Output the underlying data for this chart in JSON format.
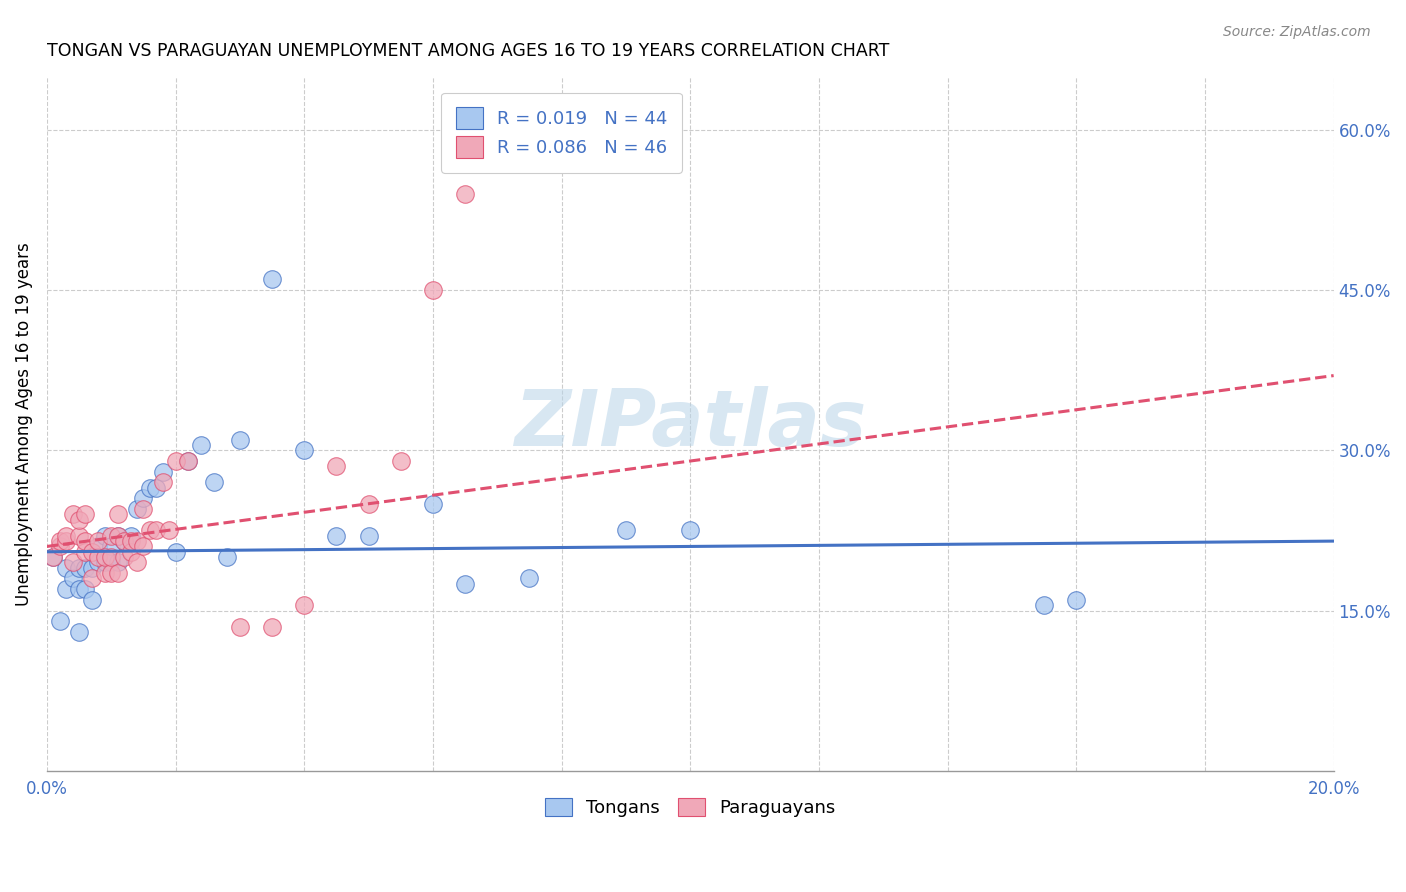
{
  "title": "TONGAN VS PARAGUAYAN UNEMPLOYMENT AMONG AGES 16 TO 19 YEARS CORRELATION CHART",
  "source": "Source: ZipAtlas.com",
  "ylabel": "Unemployment Among Ages 16 to 19 years",
  "xlim": [
    0.0,
    0.2
  ],
  "ylim": [
    0.0,
    0.65
  ],
  "xticks": [
    0.0,
    0.02,
    0.04,
    0.06,
    0.08,
    0.1,
    0.12,
    0.14,
    0.16,
    0.18,
    0.2
  ],
  "yticks_right": [
    0.15,
    0.3,
    0.45,
    0.6
  ],
  "ytick_labels_right": [
    "15.0%",
    "30.0%",
    "45.0%",
    "60.0%"
  ],
  "color_tongan": "#a8c8f0",
  "color_paraguayan": "#f0a8b8",
  "color_blue": "#4472c4",
  "color_pink": "#e05070",
  "legend_R_tongan": "R = 0.019",
  "legend_N_tongan": "N = 44",
  "legend_R_paraguayan": "R = 0.086",
  "legend_N_paraguayan": "N = 46",
  "watermark": "ZIPatlas",
  "tongan_x": [
    0.001,
    0.002,
    0.003,
    0.003,
    0.004,
    0.005,
    0.005,
    0.005,
    0.006,
    0.006,
    0.007,
    0.007,
    0.008,
    0.008,
    0.009,
    0.009,
    0.01,
    0.01,
    0.011,
    0.011,
    0.012,
    0.013,
    0.014,
    0.015,
    0.016,
    0.017,
    0.018,
    0.02,
    0.022,
    0.024,
    0.026,
    0.028,
    0.03,
    0.035,
    0.04,
    0.045,
    0.05,
    0.06,
    0.065,
    0.075,
    0.09,
    0.1,
    0.155,
    0.16
  ],
  "tongan_y": [
    0.2,
    0.14,
    0.17,
    0.19,
    0.18,
    0.13,
    0.17,
    0.19,
    0.17,
    0.19,
    0.16,
    0.19,
    0.195,
    0.21,
    0.195,
    0.22,
    0.195,
    0.21,
    0.195,
    0.22,
    0.215,
    0.22,
    0.245,
    0.255,
    0.265,
    0.265,
    0.28,
    0.205,
    0.29,
    0.305,
    0.27,
    0.2,
    0.31,
    0.46,
    0.3,
    0.22,
    0.22,
    0.25,
    0.175,
    0.18,
    0.225,
    0.225,
    0.155,
    0.16
  ],
  "paraguayan_x": [
    0.001,
    0.002,
    0.002,
    0.003,
    0.003,
    0.004,
    0.004,
    0.005,
    0.005,
    0.006,
    0.006,
    0.006,
    0.007,
    0.007,
    0.008,
    0.008,
    0.009,
    0.009,
    0.01,
    0.01,
    0.01,
    0.011,
    0.011,
    0.011,
    0.012,
    0.012,
    0.013,
    0.013,
    0.014,
    0.014,
    0.015,
    0.015,
    0.016,
    0.017,
    0.018,
    0.019,
    0.02,
    0.022,
    0.03,
    0.035,
    0.04,
    0.045,
    0.05,
    0.055,
    0.06,
    0.065
  ],
  "paraguayan_y": [
    0.2,
    0.21,
    0.215,
    0.215,
    0.22,
    0.195,
    0.24,
    0.22,
    0.235,
    0.205,
    0.215,
    0.24,
    0.18,
    0.205,
    0.2,
    0.215,
    0.185,
    0.2,
    0.185,
    0.2,
    0.22,
    0.185,
    0.22,
    0.24,
    0.2,
    0.215,
    0.205,
    0.215,
    0.195,
    0.215,
    0.21,
    0.245,
    0.225,
    0.225,
    0.27,
    0.225,
    0.29,
    0.29,
    0.135,
    0.135,
    0.155,
    0.285,
    0.25,
    0.29,
    0.45,
    0.54
  ],
  "tongan_trendline_x": [
    0.0,
    0.2
  ],
  "tongan_trendline_y": [
    0.205,
    0.215
  ],
  "paraguayan_trendline_x": [
    0.0,
    0.2
  ],
  "paraguayan_trendline_y": [
    0.21,
    0.37
  ]
}
